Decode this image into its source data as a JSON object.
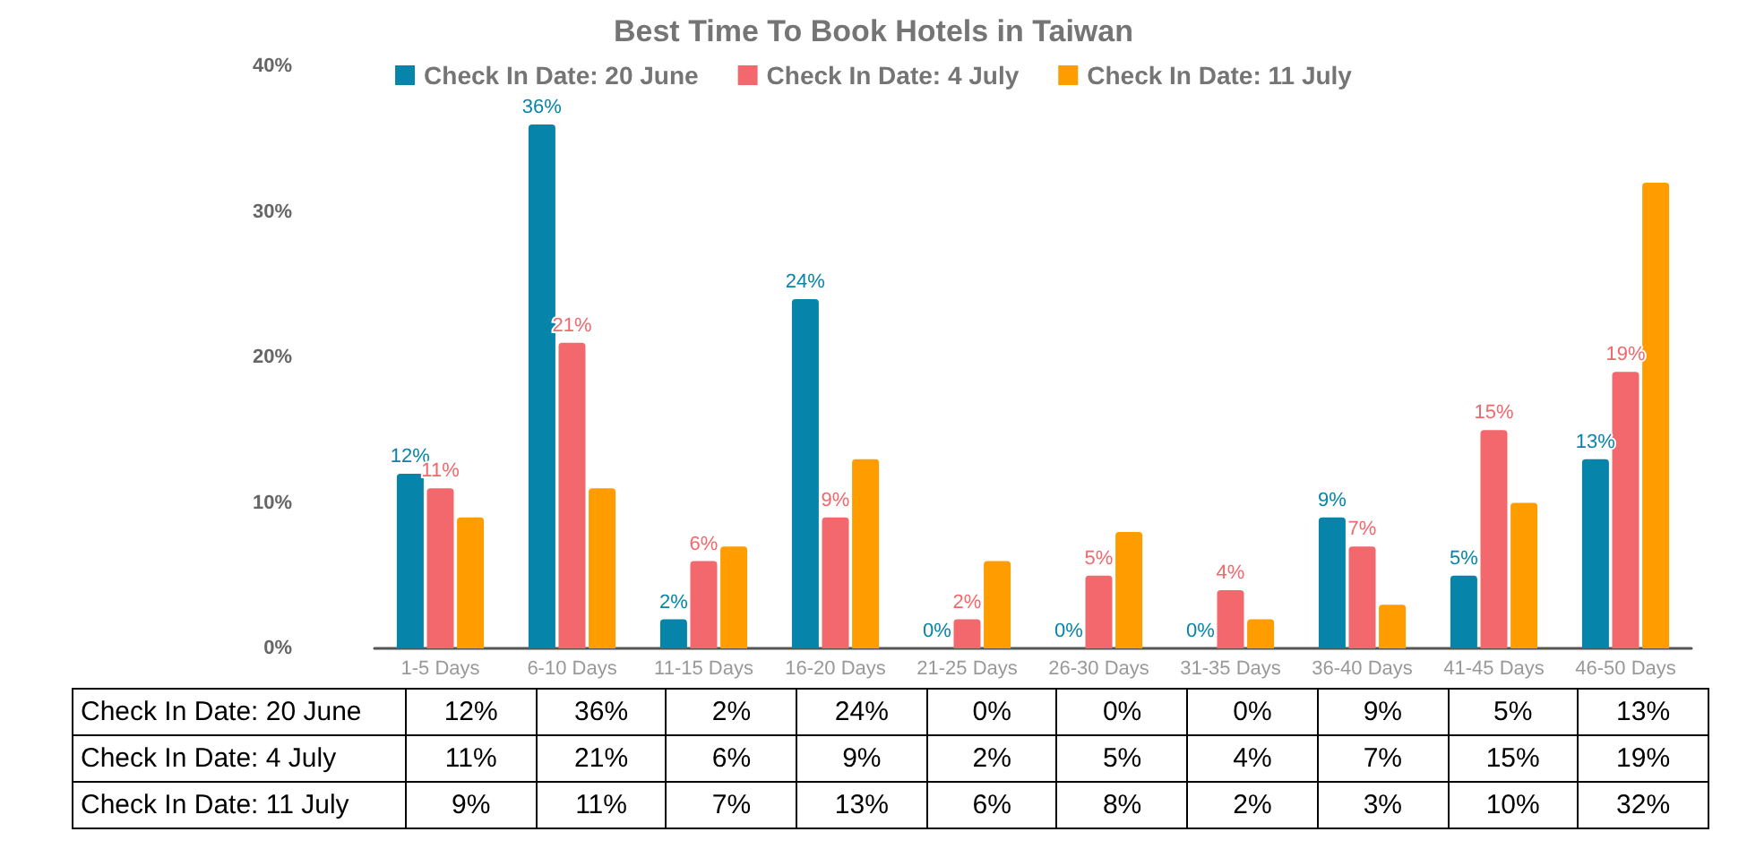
{
  "chart_data": {
    "type": "bar",
    "title": "Best Time To Book Hotels in Taiwan",
    "categories": [
      "1-5 Days",
      "6-10 Days",
      "11-15 Days",
      "16-20 Days",
      "21-25 Days",
      "26-30 Days",
      "31-35 Days",
      "36-40 Days",
      "41-45 Days",
      "46-50 Days"
    ],
    "series": [
      {
        "name": "Check In Date: 20 June",
        "color": "#0784a9",
        "values": [
          12,
          36,
          2,
          24,
          0,
          0,
          0,
          9,
          5,
          13
        ],
        "value_labels": [
          "12%",
          "36%",
          "2%",
          "24%",
          "0%",
          "0%",
          "0%",
          "9%",
          "5%",
          "13%"
        ],
        "data_labels": true
      },
      {
        "name": "Check In Date: 4 July",
        "color": "#f2686c",
        "values": [
          11,
          21,
          6,
          9,
          2,
          5,
          4,
          7,
          15,
          19
        ],
        "value_labels": [
          "11%",
          "21%",
          "6%",
          "9%",
          "2%",
          "5%",
          "4%",
          "7%",
          "15%",
          "19%"
        ],
        "data_labels": true
      },
      {
        "name": "Check In Date: 11 July",
        "color": "#ff9c00",
        "values": [
          9,
          11,
          7,
          13,
          6,
          8,
          2,
          3,
          10,
          32
        ],
        "value_labels": [
          "9%",
          "11%",
          "7%",
          "13%",
          "6%",
          "8%",
          "2%",
          "3%",
          "10%",
          "32%"
        ]
      }
    ],
    "ylim": [
      0,
      40
    ],
    "yticks": [
      {
        "value": 0,
        "label": "0%"
      },
      {
        "value": 10,
        "label": "10%"
      },
      {
        "value": 20,
        "label": "20%"
      },
      {
        "value": 30,
        "label": "30%"
      },
      {
        "value": 40,
        "label": "40%"
      }
    ],
    "grid": false,
    "legend": "top"
  }
}
